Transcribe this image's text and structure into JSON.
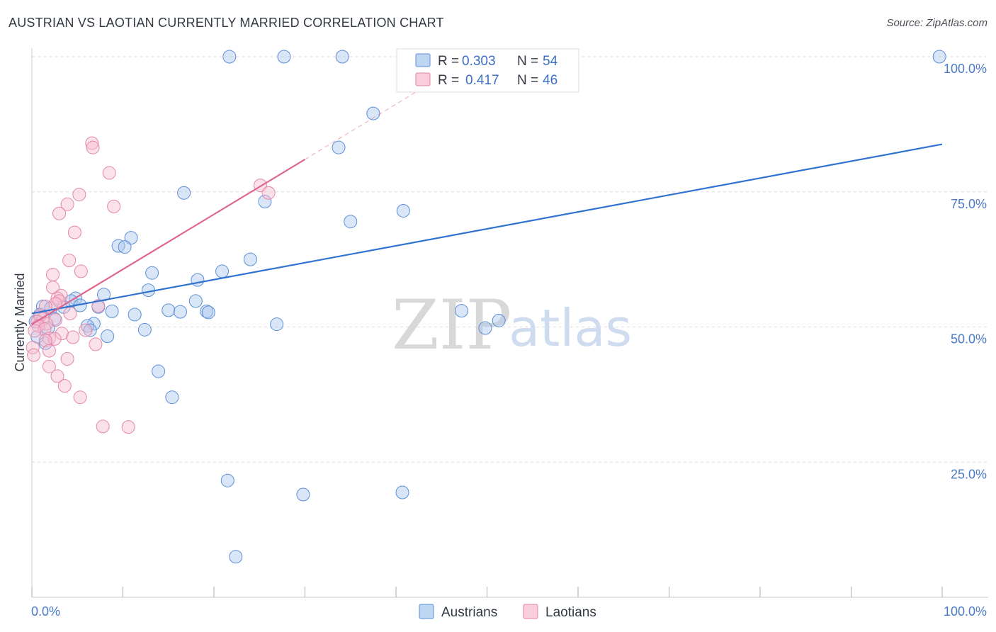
{
  "title": "AUSTRIAN VS LAOTIAN CURRENTLY MARRIED CORRELATION CHART",
  "source": "Source: ZipAtlas.com",
  "watermark": {
    "zip": "ZIP",
    "atlas": "atlas"
  },
  "colors": {
    "austrians_fill": "#aac8ee",
    "austrians_stroke": "#5b8fd6",
    "austrians_line": "#2f72d0",
    "laotians_fill": "#f7bcd0",
    "laotians_stroke": "#e487a8",
    "laotians_line": "#e0668f",
    "grid": "#dddddd",
    "tick_text": "#4a7bc8"
  },
  "chart_data": {
    "type": "scatter",
    "title": "AUSTRIAN VS LAOTIAN CURRENTLY MARRIED CORRELATION CHART",
    "xlabel": "",
    "ylabel": "Currently Married",
    "xlim": [
      0,
      100
    ],
    "ylim": [
      0,
      100
    ],
    "x_tick_labels": [
      "0.0%",
      "100.0%"
    ],
    "y_tick_labels": [
      "25.0%",
      "50.0%",
      "75.0%",
      "100.0%"
    ],
    "y_ticks": [
      25,
      50,
      75,
      100
    ],
    "grid": true,
    "legend": [
      {
        "name": "Austrians",
        "r_label": "R =",
        "r": "0.303",
        "n_label": "N =",
        "n": "54"
      },
      {
        "name": "Laotians",
        "r_label": "R =",
        "r": "0.417",
        "n_label": "N =",
        "n": "46"
      }
    ],
    "series": [
      {
        "name": "Austrians",
        "trend": {
          "x0": 0,
          "y0": 52.5,
          "x1": 100,
          "y1": 83.8
        },
        "points": [
          [
            21.7,
            100
          ],
          [
            27.7,
            100
          ],
          [
            34.1,
            100
          ],
          [
            99.7,
            100
          ],
          [
            37.5,
            89.5
          ],
          [
            33.7,
            83.2
          ],
          [
            16.7,
            74.8
          ],
          [
            25.6,
            73.2
          ],
          [
            40.8,
            71.5
          ],
          [
            35.0,
            69.5
          ],
          [
            10.9,
            66.5
          ],
          [
            9.5,
            65.0
          ],
          [
            10.2,
            64.8
          ],
          [
            24.0,
            62.5
          ],
          [
            13.2,
            60.0
          ],
          [
            20.9,
            60.3
          ],
          [
            18.2,
            58.7
          ],
          [
            12.8,
            56.8
          ],
          [
            7.9,
            56.0
          ],
          [
            4.8,
            55.3
          ],
          [
            18.0,
            54.8
          ],
          [
            4.3,
            54.8
          ],
          [
            1.2,
            53.8
          ],
          [
            3.5,
            53.7
          ],
          [
            2.1,
            53.5
          ],
          [
            5.3,
            54.0
          ],
          [
            7.3,
            53.7
          ],
          [
            15.0,
            53.1
          ],
          [
            8.8,
            52.9
          ],
          [
            19.2,
            52.9
          ],
          [
            19.4,
            52.7
          ],
          [
            16.3,
            52.8
          ],
          [
            11.3,
            52.3
          ],
          [
            0.9,
            52.3
          ],
          [
            47.2,
            53.0
          ],
          [
            51.3,
            51.2
          ],
          [
            26.9,
            50.5
          ],
          [
            6.8,
            50.6
          ],
          [
            6.1,
            50.2
          ],
          [
            49.8,
            49.8
          ],
          [
            12.4,
            49.5
          ],
          [
            6.4,
            49.4
          ],
          [
            8.3,
            48.3
          ],
          [
            13.9,
            41.8
          ],
          [
            15.4,
            37.0
          ],
          [
            21.5,
            21.6
          ],
          [
            29.8,
            19.0
          ],
          [
            40.7,
            19.4
          ],
          [
            22.4,
            7.5
          ],
          [
            0.4,
            51.0
          ],
          [
            1.8,
            49.8
          ],
          [
            2.5,
            51.5
          ],
          [
            0.6,
            48.2
          ],
          [
            1.5,
            47.0
          ]
        ]
      },
      {
        "name": "Laotians",
        "trend": {
          "x0": 0,
          "y0": 50.5,
          "x1": 30,
          "y1": 81.0
        },
        "trend_dashed": {
          "x0": 30,
          "y0": 81.0,
          "x1": 43.5,
          "y1": 94.8
        },
        "points": [
          [
            6.6,
            84.0
          ],
          [
            6.7,
            83.2
          ],
          [
            8.5,
            78.5
          ],
          [
            25.1,
            76.2
          ],
          [
            26.0,
            74.8
          ],
          [
            5.2,
            74.5
          ],
          [
            3.9,
            72.7
          ],
          [
            9.0,
            72.3
          ],
          [
            3.0,
            71.0
          ],
          [
            4.7,
            67.5
          ],
          [
            4.1,
            62.3
          ],
          [
            5.4,
            60.3
          ],
          [
            2.3,
            59.7
          ],
          [
            2.3,
            57.3
          ],
          [
            3.2,
            55.8
          ],
          [
            2.8,
            55.3
          ],
          [
            3.0,
            54.8
          ],
          [
            2.6,
            54.3
          ],
          [
            1.5,
            53.8
          ],
          [
            7.3,
            53.9
          ],
          [
            4.2,
            52.5
          ],
          [
            0.9,
            52.0
          ],
          [
            1.2,
            51.5
          ],
          [
            2.6,
            51.3
          ],
          [
            0.6,
            51.0
          ],
          [
            1.6,
            50.6
          ],
          [
            0.7,
            50.2
          ],
          [
            1.4,
            49.6
          ],
          [
            0.3,
            49.3
          ],
          [
            5.9,
            49.4
          ],
          [
            3.3,
            48.8
          ],
          [
            4.5,
            48.1
          ],
          [
            1.9,
            47.9
          ],
          [
            2.5,
            47.8
          ],
          [
            1.5,
            47.5
          ],
          [
            7.0,
            46.8
          ],
          [
            0.1,
            46.2
          ],
          [
            1.9,
            45.6
          ],
          [
            0.2,
            44.8
          ],
          [
            3.9,
            44.1
          ],
          [
            1.9,
            42.7
          ],
          [
            2.8,
            40.9
          ],
          [
            3.6,
            39.1
          ],
          [
            5.3,
            37.0
          ],
          [
            7.8,
            31.6
          ],
          [
            10.6,
            31.5
          ]
        ]
      }
    ]
  }
}
